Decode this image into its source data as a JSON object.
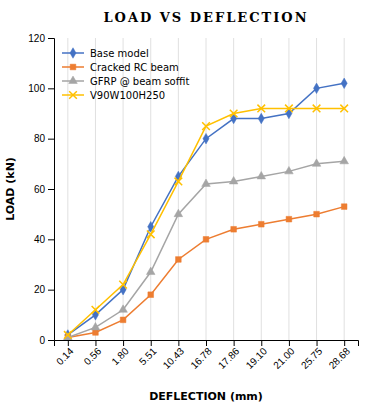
{
  "chart_data": {
    "type": "line",
    "title": "LOAD VS DEFLECTION",
    "x_label": "DEFLECTION (mm)",
    "y_label": "LOAD (kN)",
    "categories": [
      "0.14",
      "0.56",
      "1.80",
      "5.51",
      "10.43",
      "16.78",
      "17.86",
      "19.10",
      "21.00",
      "25.75",
      "28.68"
    ],
    "series": [
      {
        "name": "Base model",
        "color": "#4472C4",
        "marker": "diamond",
        "values": [
          2,
          10,
          20,
          45,
          65,
          80,
          88,
          88,
          90,
          100,
          102
        ]
      },
      {
        "name": "Cracked RC beam",
        "color": "#ED7D31",
        "marker": "square",
        "values": [
          1,
          3,
          8,
          18,
          32,
          40,
          44,
          46,
          48,
          50,
          53
        ]
      },
      {
        "name": "GFRP @ beam soffit",
        "color": "#A5A5A5",
        "marker": "triangle",
        "values": [
          1,
          5,
          12,
          27,
          50,
          62,
          63,
          65,
          67,
          70,
          71
        ]
      },
      {
        "name": "V90W100H250",
        "color": "#FFC000",
        "marker": "x",
        "values": [
          2,
          12,
          22,
          42,
          63,
          85,
          90,
          92,
          92,
          92,
          92
        ]
      }
    ],
    "ylim": [
      0,
      120
    ],
    "yticks": [
      0,
      20,
      40,
      60,
      80,
      100,
      120
    ],
    "grid": "x",
    "legend": "top-left"
  }
}
